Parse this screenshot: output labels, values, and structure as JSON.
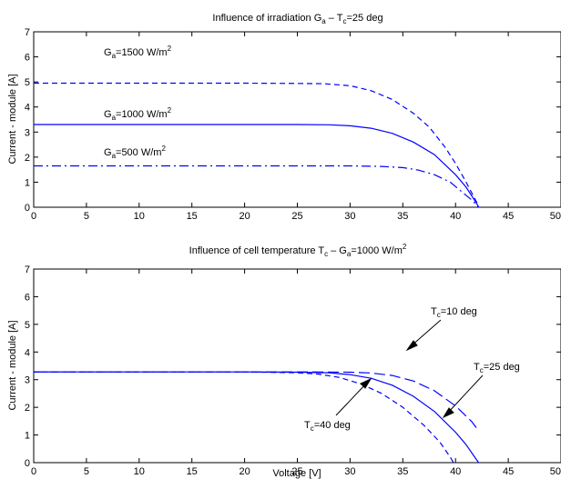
{
  "chart_data": [
    {
      "type": "line",
      "title": {
        "prefix": "Influence of irradiation G",
        "sub1": "a",
        "mid": " – T",
        "sub2": "c",
        "suffix": "=25 deg"
      },
      "xlabel": "",
      "ylabel": "Current - module [A]",
      "xlim": [
        0,
        50
      ],
      "ylim": [
        0,
        7
      ],
      "xticks": [
        0,
        5,
        10,
        15,
        20,
        25,
        30,
        35,
        40,
        45,
        50
      ],
      "yticks": [
        0,
        1,
        2,
        3,
        4,
        5,
        6,
        7
      ],
      "grid": false,
      "color": "#0000ff",
      "series": [
        {
          "style": "dashed",
          "x": [
            0,
            20,
            25,
            27.5,
            30,
            32,
            34,
            36,
            37.5,
            39,
            40,
            41,
            42,
            42.2
          ],
          "y": [
            4.95,
            4.95,
            4.94,
            4.93,
            4.85,
            4.65,
            4.3,
            3.75,
            3.2,
            2.4,
            1.75,
            1.0,
            0.2,
            0
          ]
        },
        {
          "style": "solid",
          "x": [
            0,
            20,
            25,
            28,
            30,
            32,
            34,
            36,
            38,
            40,
            41,
            42,
            42.2
          ],
          "y": [
            3.3,
            3.3,
            3.3,
            3.29,
            3.25,
            3.15,
            2.95,
            2.6,
            2.1,
            1.3,
            0.8,
            0.15,
            0
          ]
        },
        {
          "style": "dashdot",
          "x": [
            0,
            20,
            25,
            30,
            33,
            35,
            36.5,
            38,
            39.5,
            40.5,
            41.5,
            42.2
          ],
          "y": [
            1.65,
            1.65,
            1.65,
            1.65,
            1.63,
            1.58,
            1.48,
            1.3,
            1.0,
            0.65,
            0.3,
            0
          ]
        }
      ],
      "annotations": [
        {
          "prefix": "G",
          "sub": "a",
          "text": "=1500 W/m",
          "sup": "2"
        },
        {
          "prefix": "G",
          "sub": "a",
          "text": "=1000 W/m",
          "sup": "2"
        },
        {
          "prefix": "G",
          "sub": "a",
          "text": "=500 W/m",
          "sup": "2"
        }
      ]
    },
    {
      "type": "line",
      "title": {
        "prefix": "Influence of cell temperature T",
        "sub1": "c",
        "mid": " – G",
        "sub2": "a",
        "suffix": "=1000 W/m",
        "sup": "2"
      },
      "xlabel": "Voltage [V]",
      "ylabel": "Current - module [A]",
      "xlim": [
        0,
        50
      ],
      "ylim": [
        0,
        7
      ],
      "xticks": [
        0,
        5,
        10,
        15,
        20,
        25,
        30,
        35,
        40,
        45,
        50
      ],
      "yticks": [
        0,
        1,
        2,
        3,
        4,
        5,
        6,
        7
      ],
      "grid": false,
      "color": "#0000ff",
      "series": [
        {
          "style": "longdash",
          "x": [
            0,
            20,
            25,
            30,
            32,
            34,
            36,
            38,
            40,
            41.5,
            42.2
          ],
          "y": [
            3.28,
            3.28,
            3.28,
            3.27,
            3.24,
            3.15,
            2.95,
            2.6,
            2.05,
            1.5,
            1.15
          ]
        },
        {
          "style": "solid",
          "x": [
            0,
            20,
            25,
            28,
            30,
            32,
            34,
            36,
            38,
            40,
            41,
            42,
            42.2
          ],
          "y": [
            3.28,
            3.28,
            3.27,
            3.25,
            3.18,
            3.05,
            2.8,
            2.4,
            1.85,
            1.1,
            0.65,
            0.1,
            0
          ]
        },
        {
          "style": "dashed",
          "x": [
            0,
            20,
            25,
            27,
            29,
            31,
            33,
            35,
            37,
            38.5,
            39.5,
            39.8
          ],
          "y": [
            3.28,
            3.28,
            3.25,
            3.2,
            3.08,
            2.85,
            2.5,
            2.0,
            1.35,
            0.75,
            0.2,
            0
          ]
        }
      ],
      "annotations": [
        {
          "prefix": "T",
          "sub": "c",
          "text": "=10 deg"
        },
        {
          "prefix": "T",
          "sub": "c",
          "text": "=25 deg"
        },
        {
          "prefix": "T",
          "sub": "c",
          "text": "=40 deg"
        }
      ]
    }
  ]
}
